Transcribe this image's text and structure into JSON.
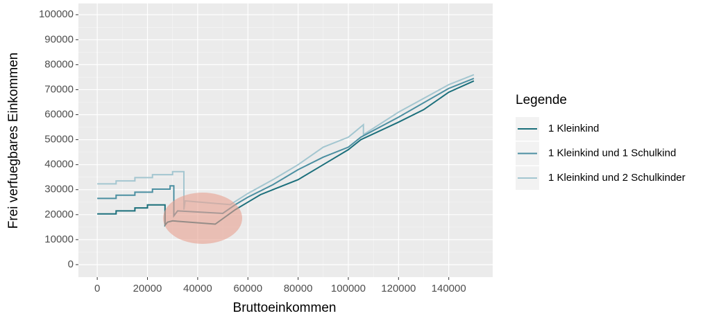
{
  "chart_data": {
    "type": "line",
    "xlabel": "Bruttoeinkommen",
    "ylabel": "Frei verfuegbares Einkommen",
    "legend_title": "Legende",
    "legend_position": "right",
    "grid": true,
    "xlim": [
      -7500,
      157500
    ],
    "ylim": [
      -5000,
      104500
    ],
    "xticks": [
      0,
      20000,
      40000,
      60000,
      80000,
      100000,
      120000,
      140000
    ],
    "yticks": [
      0,
      10000,
      20000,
      30000,
      40000,
      50000,
      60000,
      70000,
      80000,
      90000,
      100000
    ],
    "series": [
      {
        "name": "1 Kleinkind",
        "color": "#1b6f7b",
        "x": [
          0,
          7500,
          7500,
          15000,
          15000,
          20000,
          20000,
          27000,
          27000,
          28000,
          30000,
          47000,
          55000,
          60000,
          65000,
          70000,
          80000,
          90000,
          100000,
          105000,
          120000,
          130000,
          140000,
          150000
        ],
        "values": [
          20300,
          20300,
          21500,
          21500,
          22700,
          22700,
          23900,
          23900,
          15800,
          17000,
          17500,
          16200,
          22000,
          25000,
          28000,
          30000,
          34000,
          40000,
          46000,
          50000,
          57000,
          62000,
          69000,
          73500
        ]
      },
      {
        "name": "1 Kleinkind und 1 Schulkind",
        "color": "#4b8fa1",
        "x": [
          0,
          7500,
          7500,
          15000,
          15000,
          22000,
          22000,
          29000,
          29000,
          30500,
          30500,
          32000,
          50000,
          55000,
          60000,
          70000,
          80000,
          90000,
          100000,
          105000,
          120000,
          140000,
          150000
        ],
        "values": [
          26500,
          26500,
          27800,
          27800,
          29000,
          29000,
          30200,
          30200,
          31500,
          31500,
          19500,
          21500,
          20500,
          24000,
          27000,
          32000,
          38000,
          43000,
          47000,
          51000,
          59000,
          70500,
          74500
        ]
      },
      {
        "name": "1 Kleinkind und 2 Schulkinder",
        "color": "#a3c6d0",
        "x": [
          0,
          7500,
          7500,
          15000,
          15000,
          22000,
          22000,
          30000,
          30000,
          34500,
          34500,
          35000,
          53000,
          60000,
          70000,
          80000,
          90000,
          100000,
          106000,
          106000,
          120000,
          140000,
          150000
        ],
        "values": [
          32300,
          32300,
          33500,
          33500,
          34800,
          34800,
          36000,
          36000,
          37200,
          37200,
          22000,
          25500,
          24000,
          28500,
          34000,
          40000,
          47000,
          51000,
          56000,
          52000,
          61000,
          72000,
          76000
        ]
      }
    ]
  }
}
